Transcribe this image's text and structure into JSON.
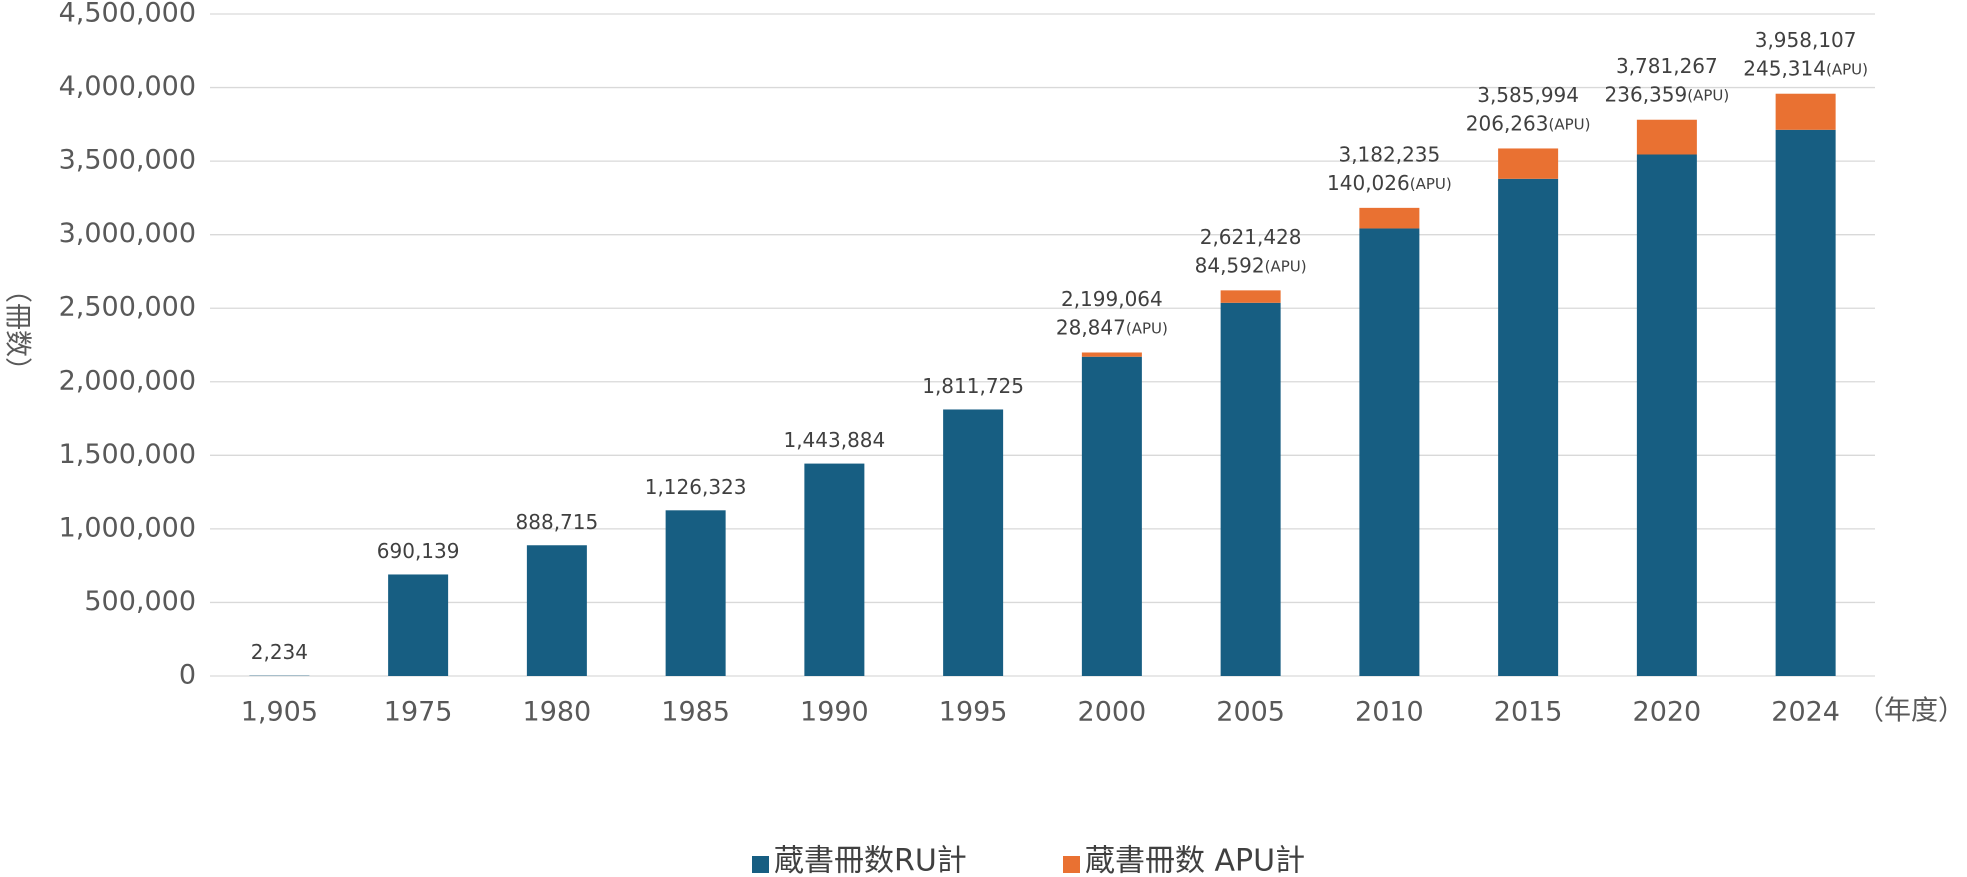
{
  "chart_data": {
    "type": "stacked_bar",
    "y_label": "（冊数）",
    "x_unit": "（年度）",
    "categories": [
      "1,905",
      "1975",
      "1980",
      "1985",
      "1990",
      "1995",
      "2000",
      "2005",
      "2010",
      "2015",
      "2020",
      "2024"
    ],
    "series": [
      {
        "name": "蔵書冊数RU計",
        "color": "#175e82",
        "values": [
          2234,
          690139,
          888715,
          1126323,
          1443884,
          1811725,
          2170217,
          2536836,
          3042209,
          3379731,
          3544908,
          3712793
        ]
      },
      {
        "name": "蔵書冊数 APU計",
        "color": "#e97132",
        "values": [
          null,
          null,
          null,
          null,
          null,
          null,
          28847,
          84592,
          140026,
          206263,
          236359,
          245314
        ],
        "value_labels": [
          null,
          null,
          null,
          null,
          null,
          null,
          "28,847",
          "84,592",
          "140,026",
          "206,263",
          "236,359",
          "245,314"
        ]
      }
    ],
    "totals": [
      2234,
      690139,
      888715,
      1126323,
      1443884,
      1811725,
      2199064,
      2621428,
      3182235,
      3585994,
      3781267,
      3958107
    ],
    "total_labels": [
      "2,234",
      "690,139",
      "888,715",
      "1,126,323",
      "1,443,884",
      "1,811,725",
      "2,199,064",
      "2,621,428",
      "3,182,235",
      "3,585,994",
      "3,781,267",
      "3,958,107"
    ],
    "apu_suffix": "(APU)",
    "ylim": [
      0,
      4500000
    ],
    "yticks": [
      0,
      {
        "value": 500000,
        "label": "500,000"
      },
      {
        "value": 1000000,
        "label": "1,000,000"
      },
      {
        "value": 1500000,
        "label": "1,500,000"
      },
      {
        "value": 2000000,
        "label": "2,000,000"
      },
      {
        "value": 2500000,
        "label": "2,500,000"
      },
      {
        "value": 3000000,
        "label": "3,000,000"
      },
      {
        "value": 3500000,
        "label": "3,500,000"
      },
      {
        "value": 4000000,
        "label": "4,000,000"
      },
      {
        "value": 4500000,
        "label": "4,500,000"
      }
    ],
    "grid": true,
    "legend": "bottom"
  }
}
